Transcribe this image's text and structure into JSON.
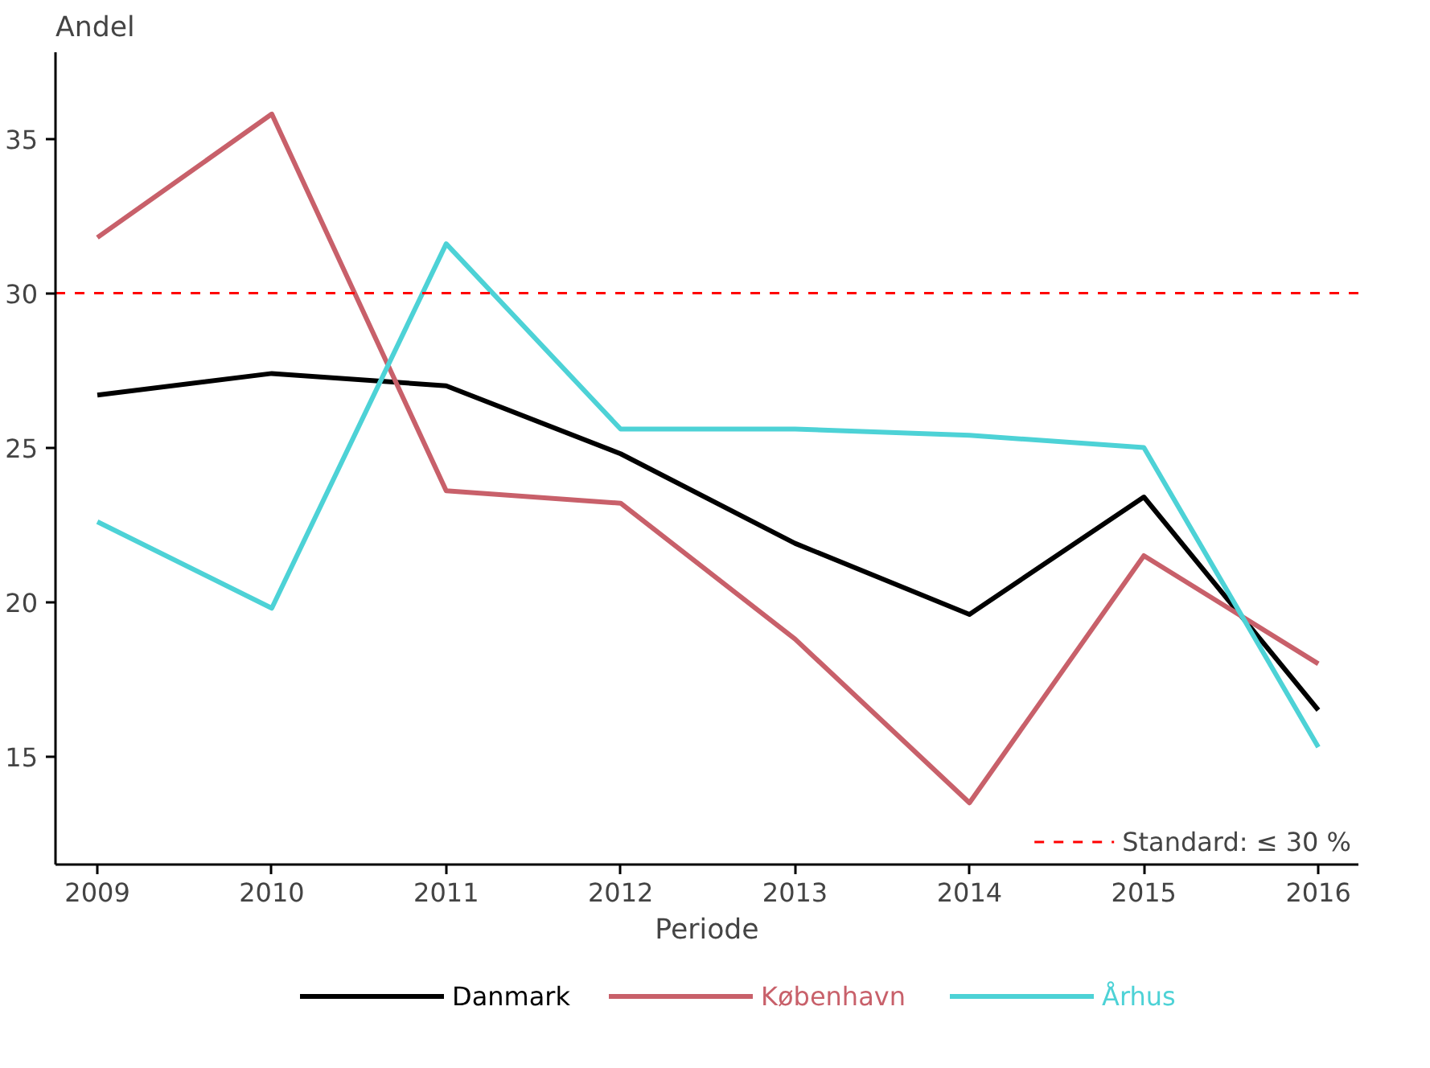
{
  "chart_data": {
    "type": "line",
    "ylabel": "Andel",
    "xlabel": "Periode",
    "x": [
      2009,
      2010,
      2011,
      2012,
      2013,
      2014,
      2015,
      2016
    ],
    "xlim": [
      2008.76,
      2016.23
    ],
    "xticks": [
      2009,
      2010,
      2011,
      2012,
      2013,
      2014,
      2015,
      2016
    ],
    "ylim": [
      11.5,
      37.8
    ],
    "yticks": [
      15,
      20,
      25,
      30,
      35
    ],
    "series": [
      {
        "name": "Danmark",
        "color": "#000000",
        "values": [
          26.7,
          27.4,
          27.0,
          24.8,
          21.9,
          19.6,
          23.4,
          16.5
        ]
      },
      {
        "name": "København",
        "color": "#c8606a",
        "values": [
          31.8,
          35.8,
          23.6,
          23.2,
          18.8,
          13.5,
          21.5,
          18.0
        ]
      },
      {
        "name": "Århus",
        "color": "#4dd2d6",
        "values": [
          22.6,
          19.8,
          31.6,
          25.6,
          25.6,
          25.4,
          25.0,
          15.3
        ]
      }
    ],
    "ref_lines": [
      {
        "axis": "y",
        "value": 30,
        "label": "Standard: ≤ 30 %",
        "color": "#ff0000",
        "line_style": "dashed"
      }
    ],
    "grid": false,
    "legend": "bottom",
    "marker": "none",
    "line_style": "solid"
  }
}
